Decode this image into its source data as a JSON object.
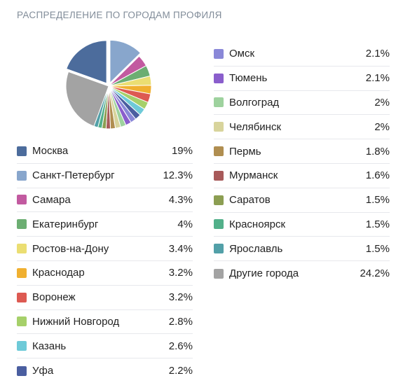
{
  "title": "РАСПРЕДЕЛЕНИЕ ПО ГОРОДАМ ПРОФИЛЯ",
  "chart_data": {
    "type": "pie",
    "title": "РАСПРЕДЕЛЕНИЕ ПО ГОРОДАМ ПРОФИЛЯ",
    "legend_placement": "below",
    "slices": [
      {
        "label": "Москва",
        "value": 19,
        "display": "19%",
        "color": "#4c6c9c"
      },
      {
        "label": "Санкт-Петербург",
        "value": 12.3,
        "display": "12.3%",
        "color": "#88a6cc"
      },
      {
        "label": "Самара",
        "value": 4.3,
        "display": "4.3%",
        "color": "#c25aa0"
      },
      {
        "label": "Екатеринбург",
        "value": 4,
        "display": "4%",
        "color": "#6cae72"
      },
      {
        "label": "Ростов-на-Дону",
        "value": 3.4,
        "display": "3.4%",
        "color": "#ebde72"
      },
      {
        "label": "Краснодар",
        "value": 3.2,
        "display": "3.2%",
        "color": "#f0b030"
      },
      {
        "label": "Воронеж",
        "value": 3.2,
        "display": "3.2%",
        "color": "#dd5a52"
      },
      {
        "label": "Нижний Новгород",
        "value": 2.8,
        "display": "2.8%",
        "color": "#a6d06a"
      },
      {
        "label": "Казань",
        "value": 2.6,
        "display": "2.6%",
        "color": "#6ecad8"
      },
      {
        "label": "Уфа",
        "value": 2.2,
        "display": "2.2%",
        "color": "#4a5ea0"
      },
      {
        "label": "Омск",
        "value": 2.1,
        "display": "2.1%",
        "color": "#8a88d8"
      },
      {
        "label": "Тюмень",
        "value": 2.1,
        "display": "2.1%",
        "color": "#8a5ecc"
      },
      {
        "label": "Волгоград",
        "value": 2,
        "display": "2%",
        "color": "#9ed29e"
      },
      {
        "label": "Челябинск",
        "value": 2,
        "display": "2%",
        "color": "#d8d49c"
      },
      {
        "label": "Пермь",
        "value": 1.8,
        "display": "1.8%",
        "color": "#b08e50"
      },
      {
        "label": "Мурманск",
        "value": 1.6,
        "display": "1.6%",
        "color": "#a85a5a"
      },
      {
        "label": "Саратов",
        "value": 1.5,
        "display": "1.5%",
        "color": "#8c9e52"
      },
      {
        "label": "Красноярск",
        "value": 1.5,
        "display": "1.5%",
        "color": "#52b08a"
      },
      {
        "label": "Ярославль",
        "value": 1.5,
        "display": "1.5%",
        "color": "#52a0a8"
      },
      {
        "label": "Другие города",
        "value": 24.2,
        "display": "24.2%",
        "color": "#a3a3a3"
      }
    ]
  }
}
